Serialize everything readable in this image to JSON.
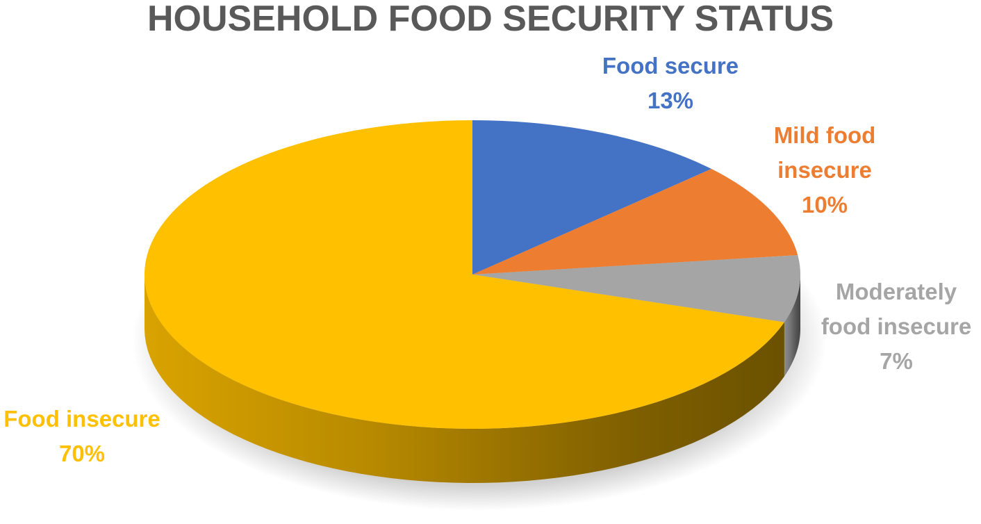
{
  "chart_data": {
    "type": "pie",
    "title": "HOUSEHOLD FOOD SECURITY STATUS",
    "categories": [
      "Food secure",
      "Mild food insecure",
      "Moderately food insecure",
      "Food insecure"
    ],
    "values": [
      13,
      10,
      7,
      70
    ],
    "value_labels": [
      "13%",
      "10%",
      "7%",
      "70%"
    ],
    "colors": [
      "#4472c4",
      "#ed7d31",
      "#a5a5a5",
      "#ffc000"
    ]
  }
}
